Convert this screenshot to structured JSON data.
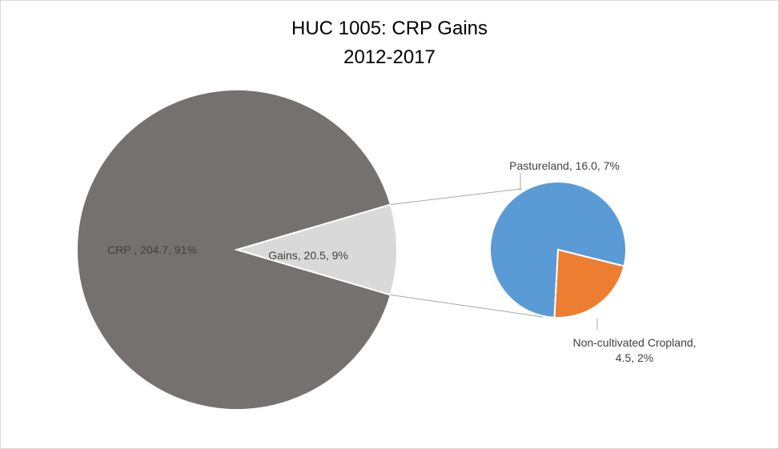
{
  "chart_data": {
    "type": "pie-of-pie",
    "title": "HUC 1005: CRP Gains",
    "subtitle": "2012-2017",
    "main": {
      "values": [
        204.7,
        20.5
      ],
      "value_labels": [
        "CRP , 204.7, 91%",
        "Gains, 20.5, 9%"
      ],
      "colors": [
        "#767171",
        "#d9d9d9"
      ]
    },
    "secondary": {
      "values": [
        16.0,
        4.5
      ],
      "value_labels": [
        "Pastureland, 16.0, 7%",
        "Non-cultivated Cropland, 4.5, 2%"
      ],
      "colors": [
        "#5b9bd5",
        "#ed7d31"
      ]
    }
  }
}
